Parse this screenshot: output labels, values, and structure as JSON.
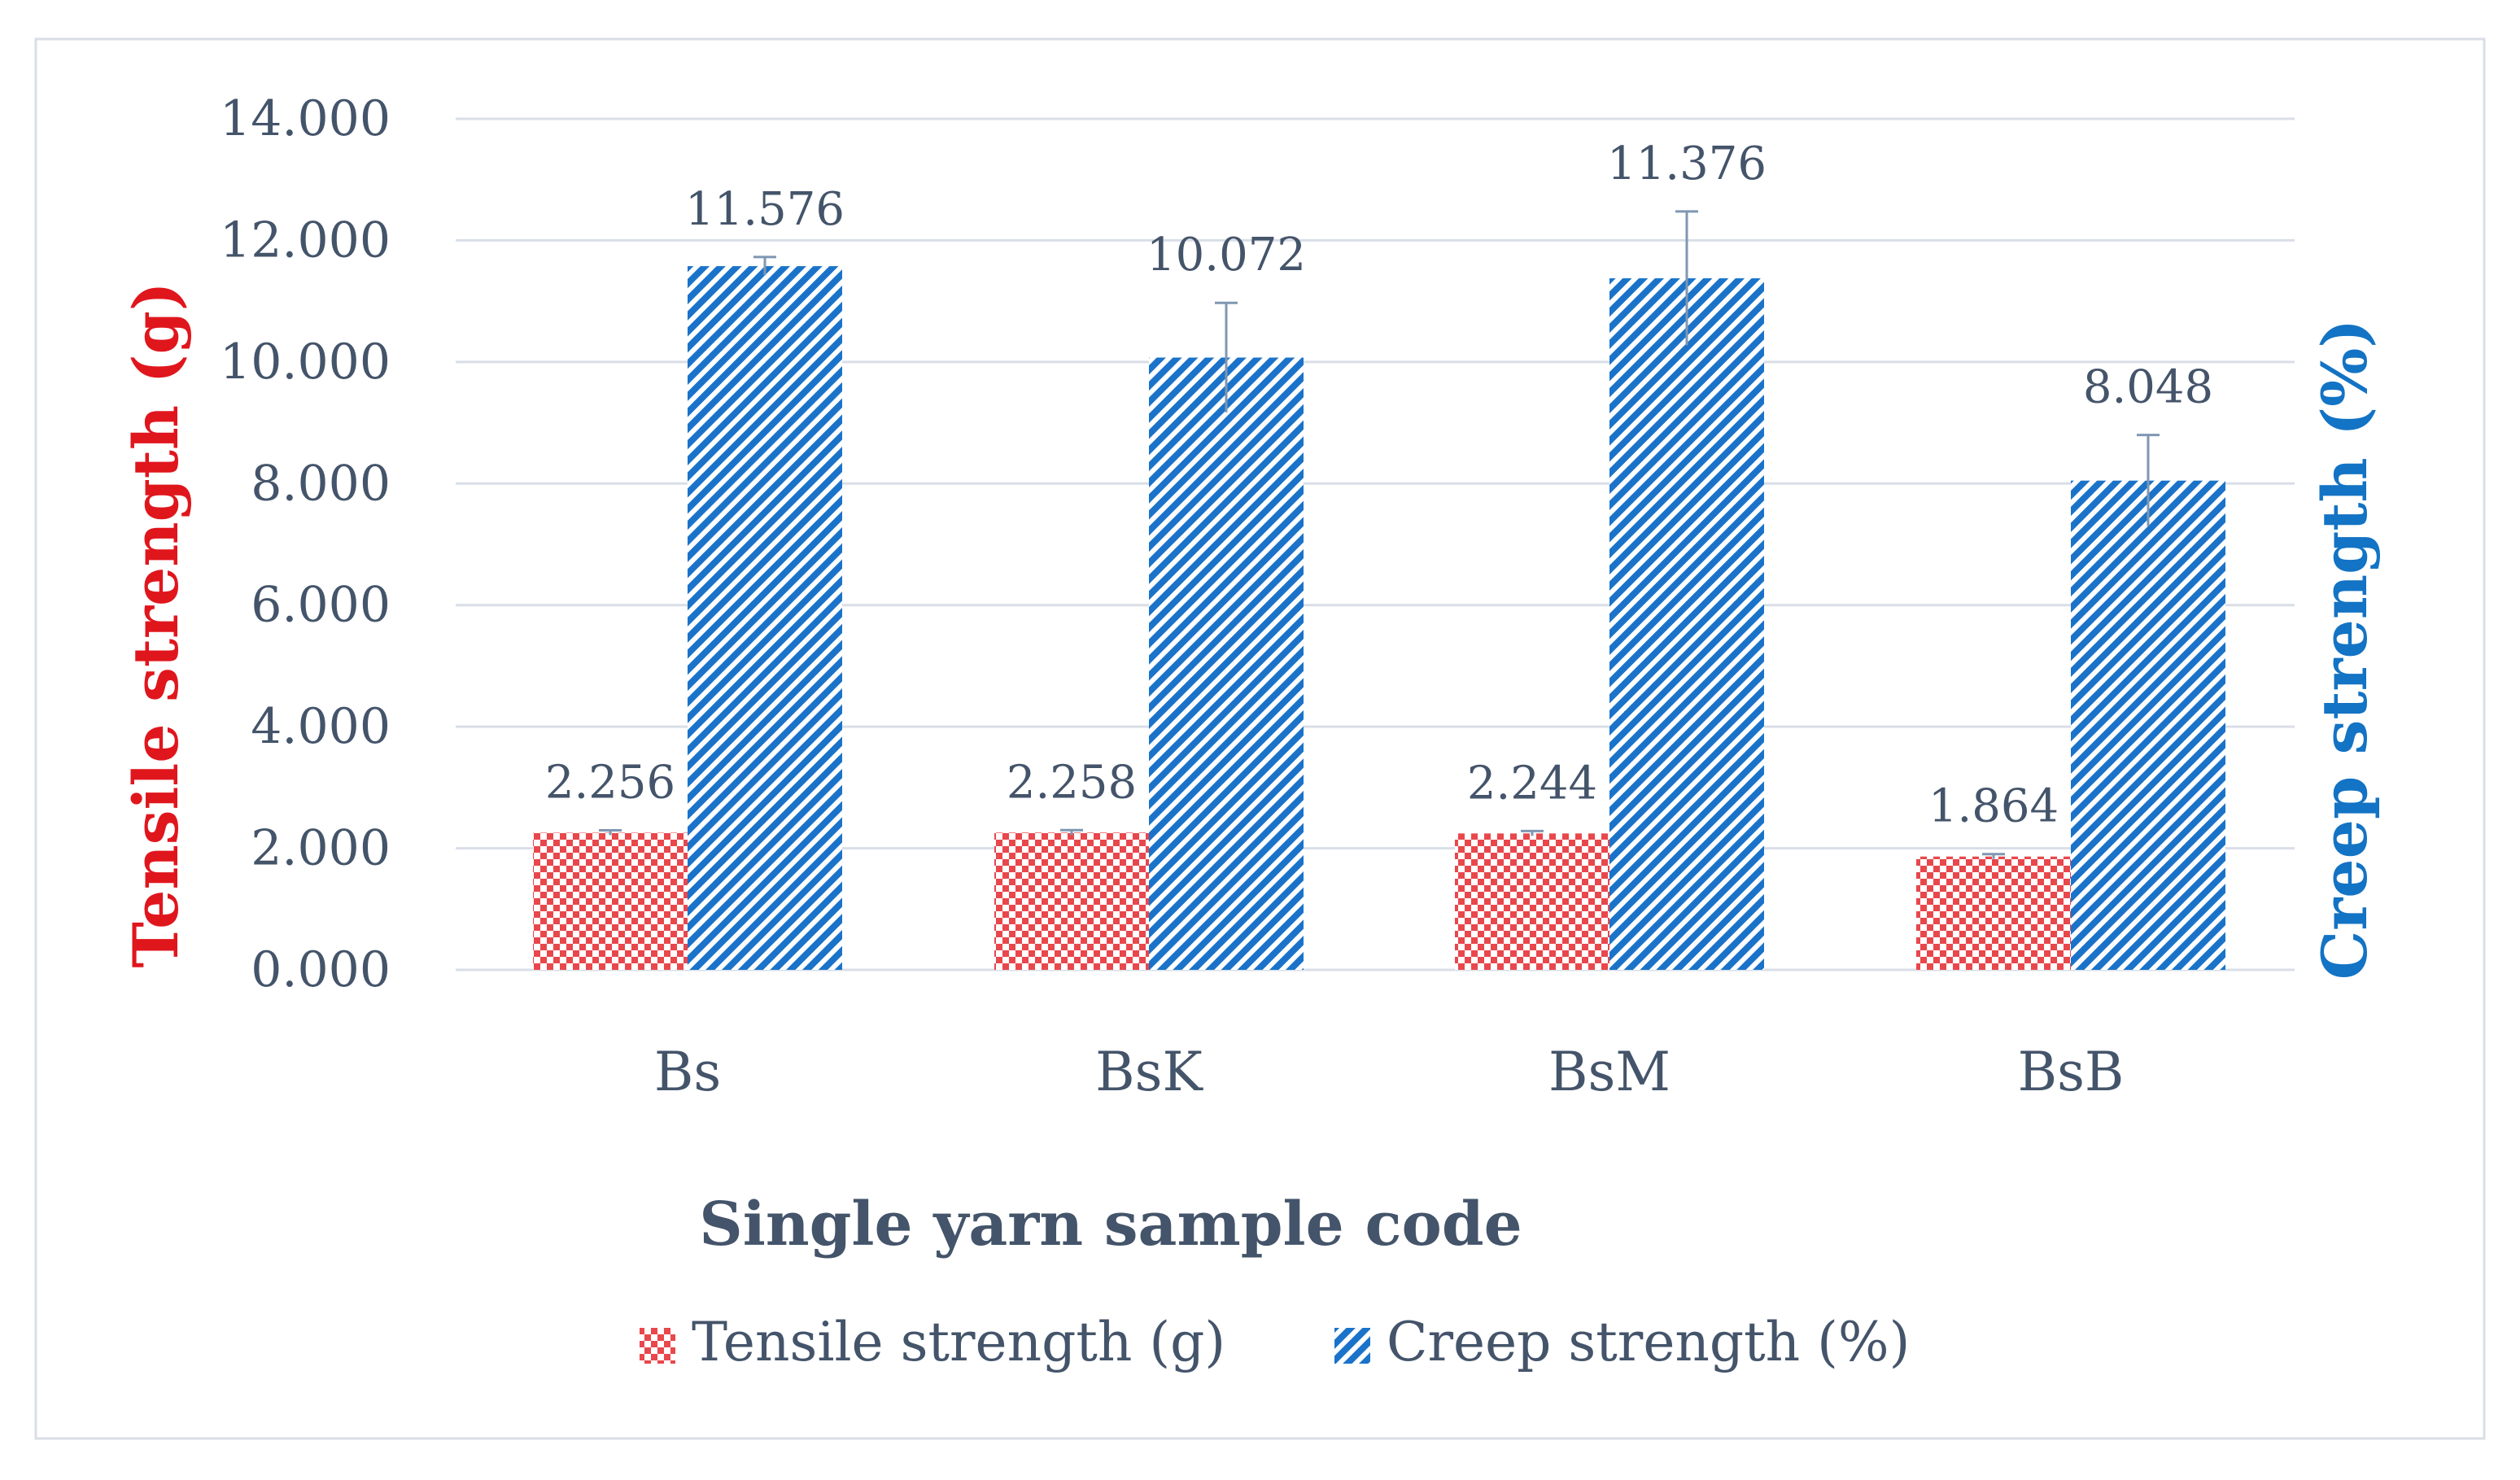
{
  "chart_data": {
    "type": "bar",
    "title": "",
    "xlabel": "Single yarn sample code",
    "ylabel_left": "Tensile strength (g)",
    "ylabel_right": "Creep strength (%)",
    "categories": [
      "Bs",
      "BsK",
      "BsM",
      "BsB"
    ],
    "ylim": [
      0,
      14
    ],
    "yticks": [
      "0.000",
      "2.000",
      "4.000",
      "6.000",
      "8.000",
      "10.000",
      "12.000",
      "14.000"
    ],
    "ytick_values": [
      0,
      2,
      4,
      6,
      8,
      10,
      12,
      14
    ],
    "grid": true,
    "legend_position": "bottom",
    "series": [
      {
        "name": "Tensile strength (g)",
        "values": [
          2.256,
          2.258,
          2.244,
          1.864
        ],
        "labels": [
          "2.256",
          "2.258",
          "2.244",
          "1.864"
        ],
        "errors": [
          0.04,
          0.04,
          0.04,
          0.04
        ],
        "color": "#e8474c",
        "pattern": "checker"
      },
      {
        "name": "Creep strength (%)",
        "values": [
          11.576,
          10.072,
          11.376,
          8.048
        ],
        "labels": [
          "11.576",
          "10.072",
          "11.376",
          "8.048"
        ],
        "errors": [
          0.15,
          0.9,
          1.1,
          0.75
        ],
        "color": "#1a73c9",
        "pattern": "diagonal"
      }
    ],
    "colors": {
      "left_axis_title": "#e0161d",
      "right_axis_title": "#1373c4"
    }
  }
}
